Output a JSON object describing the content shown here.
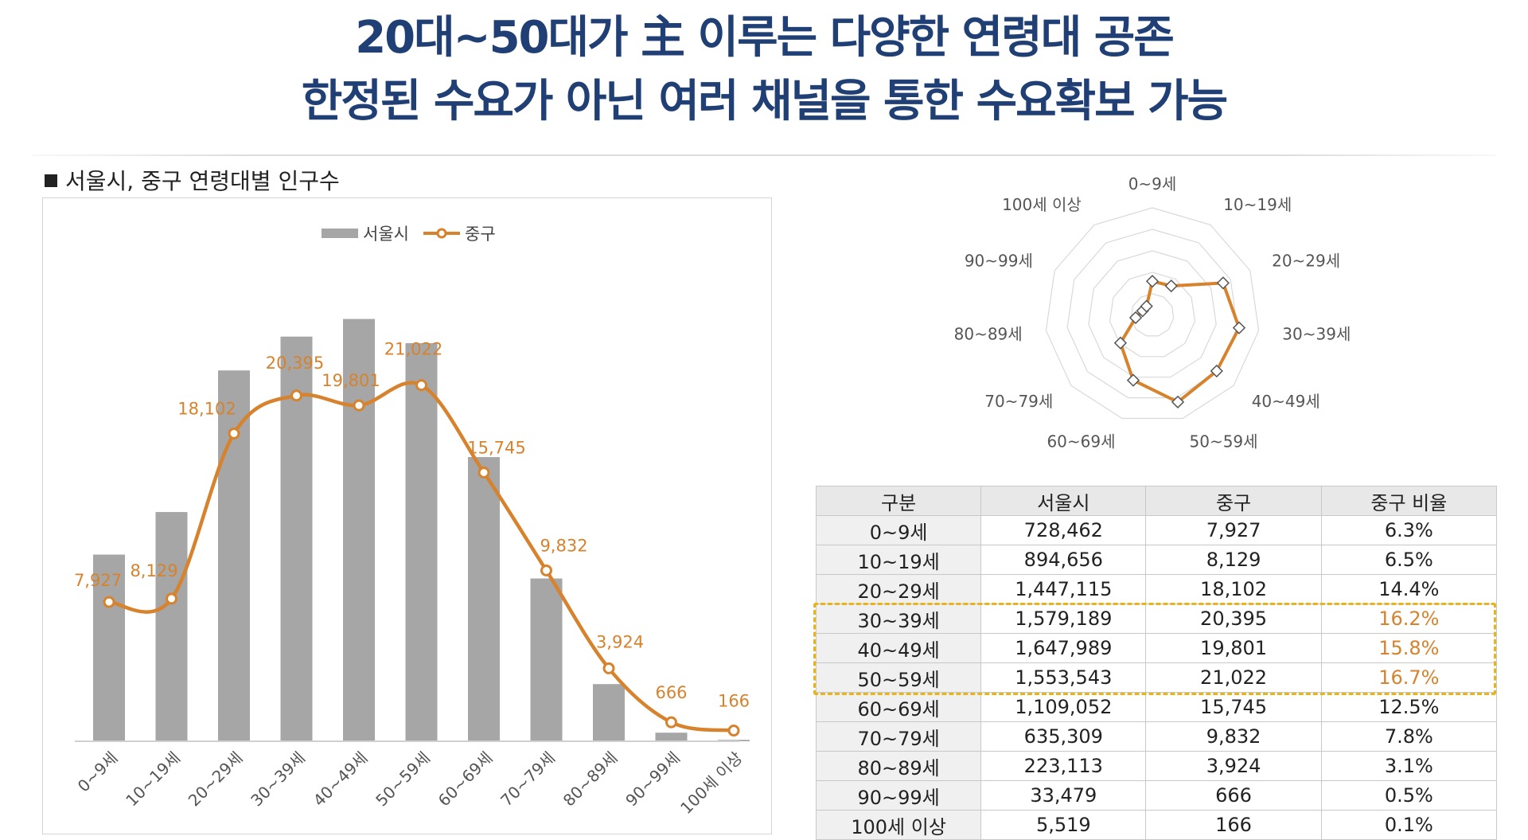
{
  "headline": {
    "line1": "20대~50대가 主 이루는 다양한 연령대 공존",
    "line2": "한정된 수요가 아닌 여러 채널을 통한 수요확보 가능"
  },
  "section_title": "서울시, 중구 연령대별 인구수",
  "colors": {
    "bar": "#a6a6a6",
    "line": "#d7822c",
    "headline": "#1f3f75",
    "highlight_border": "#e8b417"
  },
  "chart_data": [
    {
      "type": "bar",
      "categories": [
        "0~9세",
        "10~19세",
        "20~29세",
        "30~39세",
        "40~49세",
        "50~59세",
        "60~69세",
        "70~79세",
        "80~89세",
        "90~99세",
        "100세 이상"
      ],
      "series": [
        {
          "name": "서울시",
          "type": "bar",
          "values": [
            728462,
            894656,
            1447115,
            1579189,
            1647989,
            1553543,
            1109052,
            635309,
            223113,
            33479,
            5519
          ]
        },
        {
          "name": "중구",
          "type": "line",
          "values": [
            7927,
            8129,
            18102,
            20395,
            19801,
            21022,
            15745,
            9832,
            3924,
            666,
            166
          ],
          "labels": [
            "7,927",
            "8,129",
            "18,102",
            "20,395",
            "19,801",
            "21,022",
            "15,745",
            "9,832",
            "3,924",
            "666",
            "166"
          ]
        }
      ],
      "legend": "top-center",
      "grid": false
    },
    {
      "type": "radar",
      "categories": [
        "0~9세",
        "10~19세",
        "20~29세",
        "30~39세",
        "40~49세",
        "50~59세",
        "60~69세",
        "70~79세",
        "80~89세",
        "90~99세",
        "100세 이상"
      ],
      "series": [
        {
          "name": "중구",
          "values": [
            7927,
            8129,
            18102,
            20395,
            19801,
            21022,
            15745,
            9832,
            3924,
            666,
            166
          ]
        }
      ],
      "rlim": [
        0,
        25000
      ],
      "rings": 5
    },
    {
      "type": "table",
      "columns": [
        "구분",
        "서울시",
        "중구",
        "중구 비율"
      ],
      "rows": [
        [
          "0~9세",
          "728,462",
          "7,927",
          "6.3%"
        ],
        [
          "10~19세",
          "894,656",
          "8,129",
          "6.5%"
        ],
        [
          "20~29세",
          "1,447,115",
          "18,102",
          "14.4%"
        ],
        [
          "30~39세",
          "1,579,189",
          "20,395",
          "16.2%"
        ],
        [
          "40~49세",
          "1,647,989",
          "19,801",
          "15.8%"
        ],
        [
          "50~59세",
          "1,553,543",
          "21,022",
          "16.7%"
        ],
        [
          "60~69세",
          "1,109,052",
          "15,745",
          "12.5%"
        ],
        [
          "70~79세",
          "635,309",
          "9,832",
          "7.8%"
        ],
        [
          "80~89세",
          "223,113",
          "3,924",
          "3.1%"
        ],
        [
          "90~99세",
          "33,479",
          "666",
          "0.5%"
        ],
        [
          "100세 이상",
          "5,519",
          "166",
          "0.1%"
        ]
      ],
      "highlighted_rows": [
        3,
        4,
        5
      ]
    }
  ]
}
